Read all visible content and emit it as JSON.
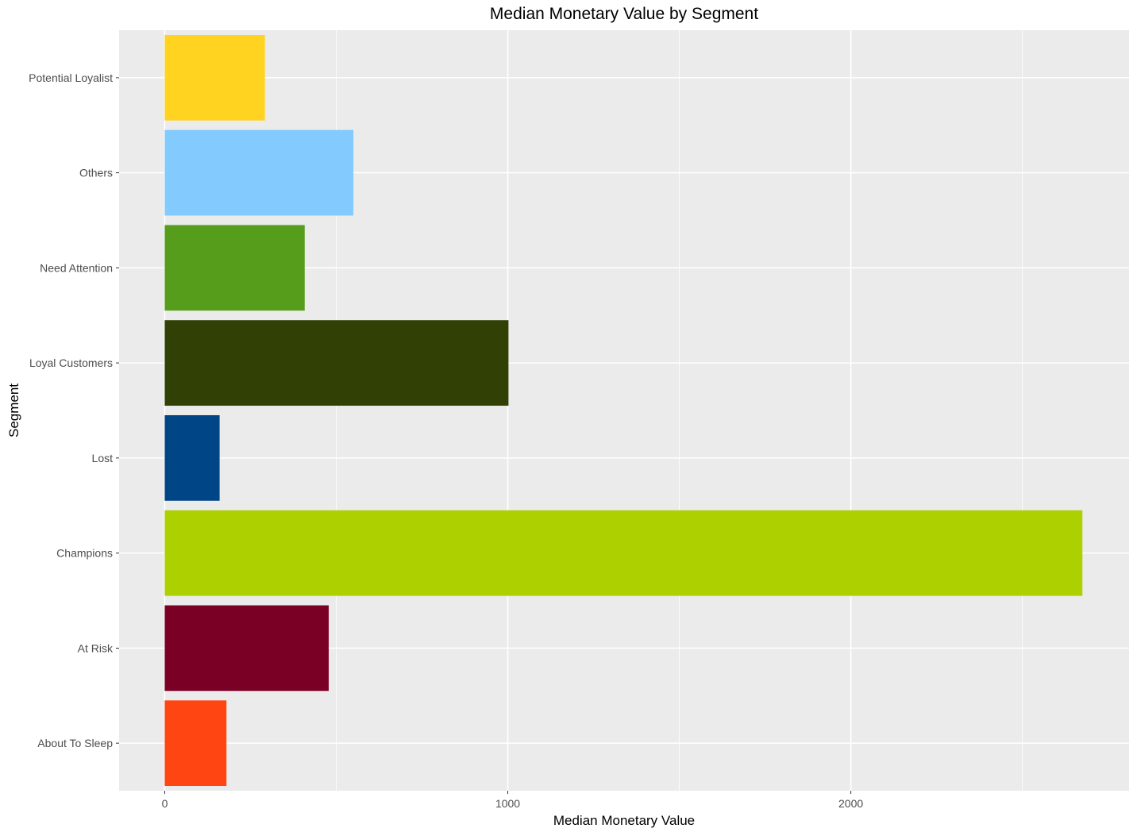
{
  "chart_data": {
    "type": "bar",
    "orientation": "horizontal",
    "title": "Median Monetary Value by Segment",
    "xlabel": "Median Monetary Value",
    "ylabel": "Segment",
    "categories": [
      "About To Sleep",
      "At Risk",
      "Champions",
      "Lost",
      "Loyal Customers",
      "Need Attention",
      "Others",
      "Potential Loyalist"
    ],
    "values": [
      180,
      478,
      2675,
      160,
      1002,
      408,
      550,
      292
    ],
    "colors": [
      "#FF4511",
      "#7B0025",
      "#ADD000",
      "#004586",
      "#314004",
      "#579D1C",
      "#83CAFF",
      "#FFD320"
    ],
    "xlim": [
      -133,
      2811
    ],
    "x_ticks": [
      0,
      1000,
      2000
    ],
    "x_tick_labels": [
      "0",
      "1000",
      "2000"
    ],
    "grid": true,
    "legend": "none",
    "panel_background": "#EBEBEB",
    "grid_color": "#FFFFFF"
  }
}
